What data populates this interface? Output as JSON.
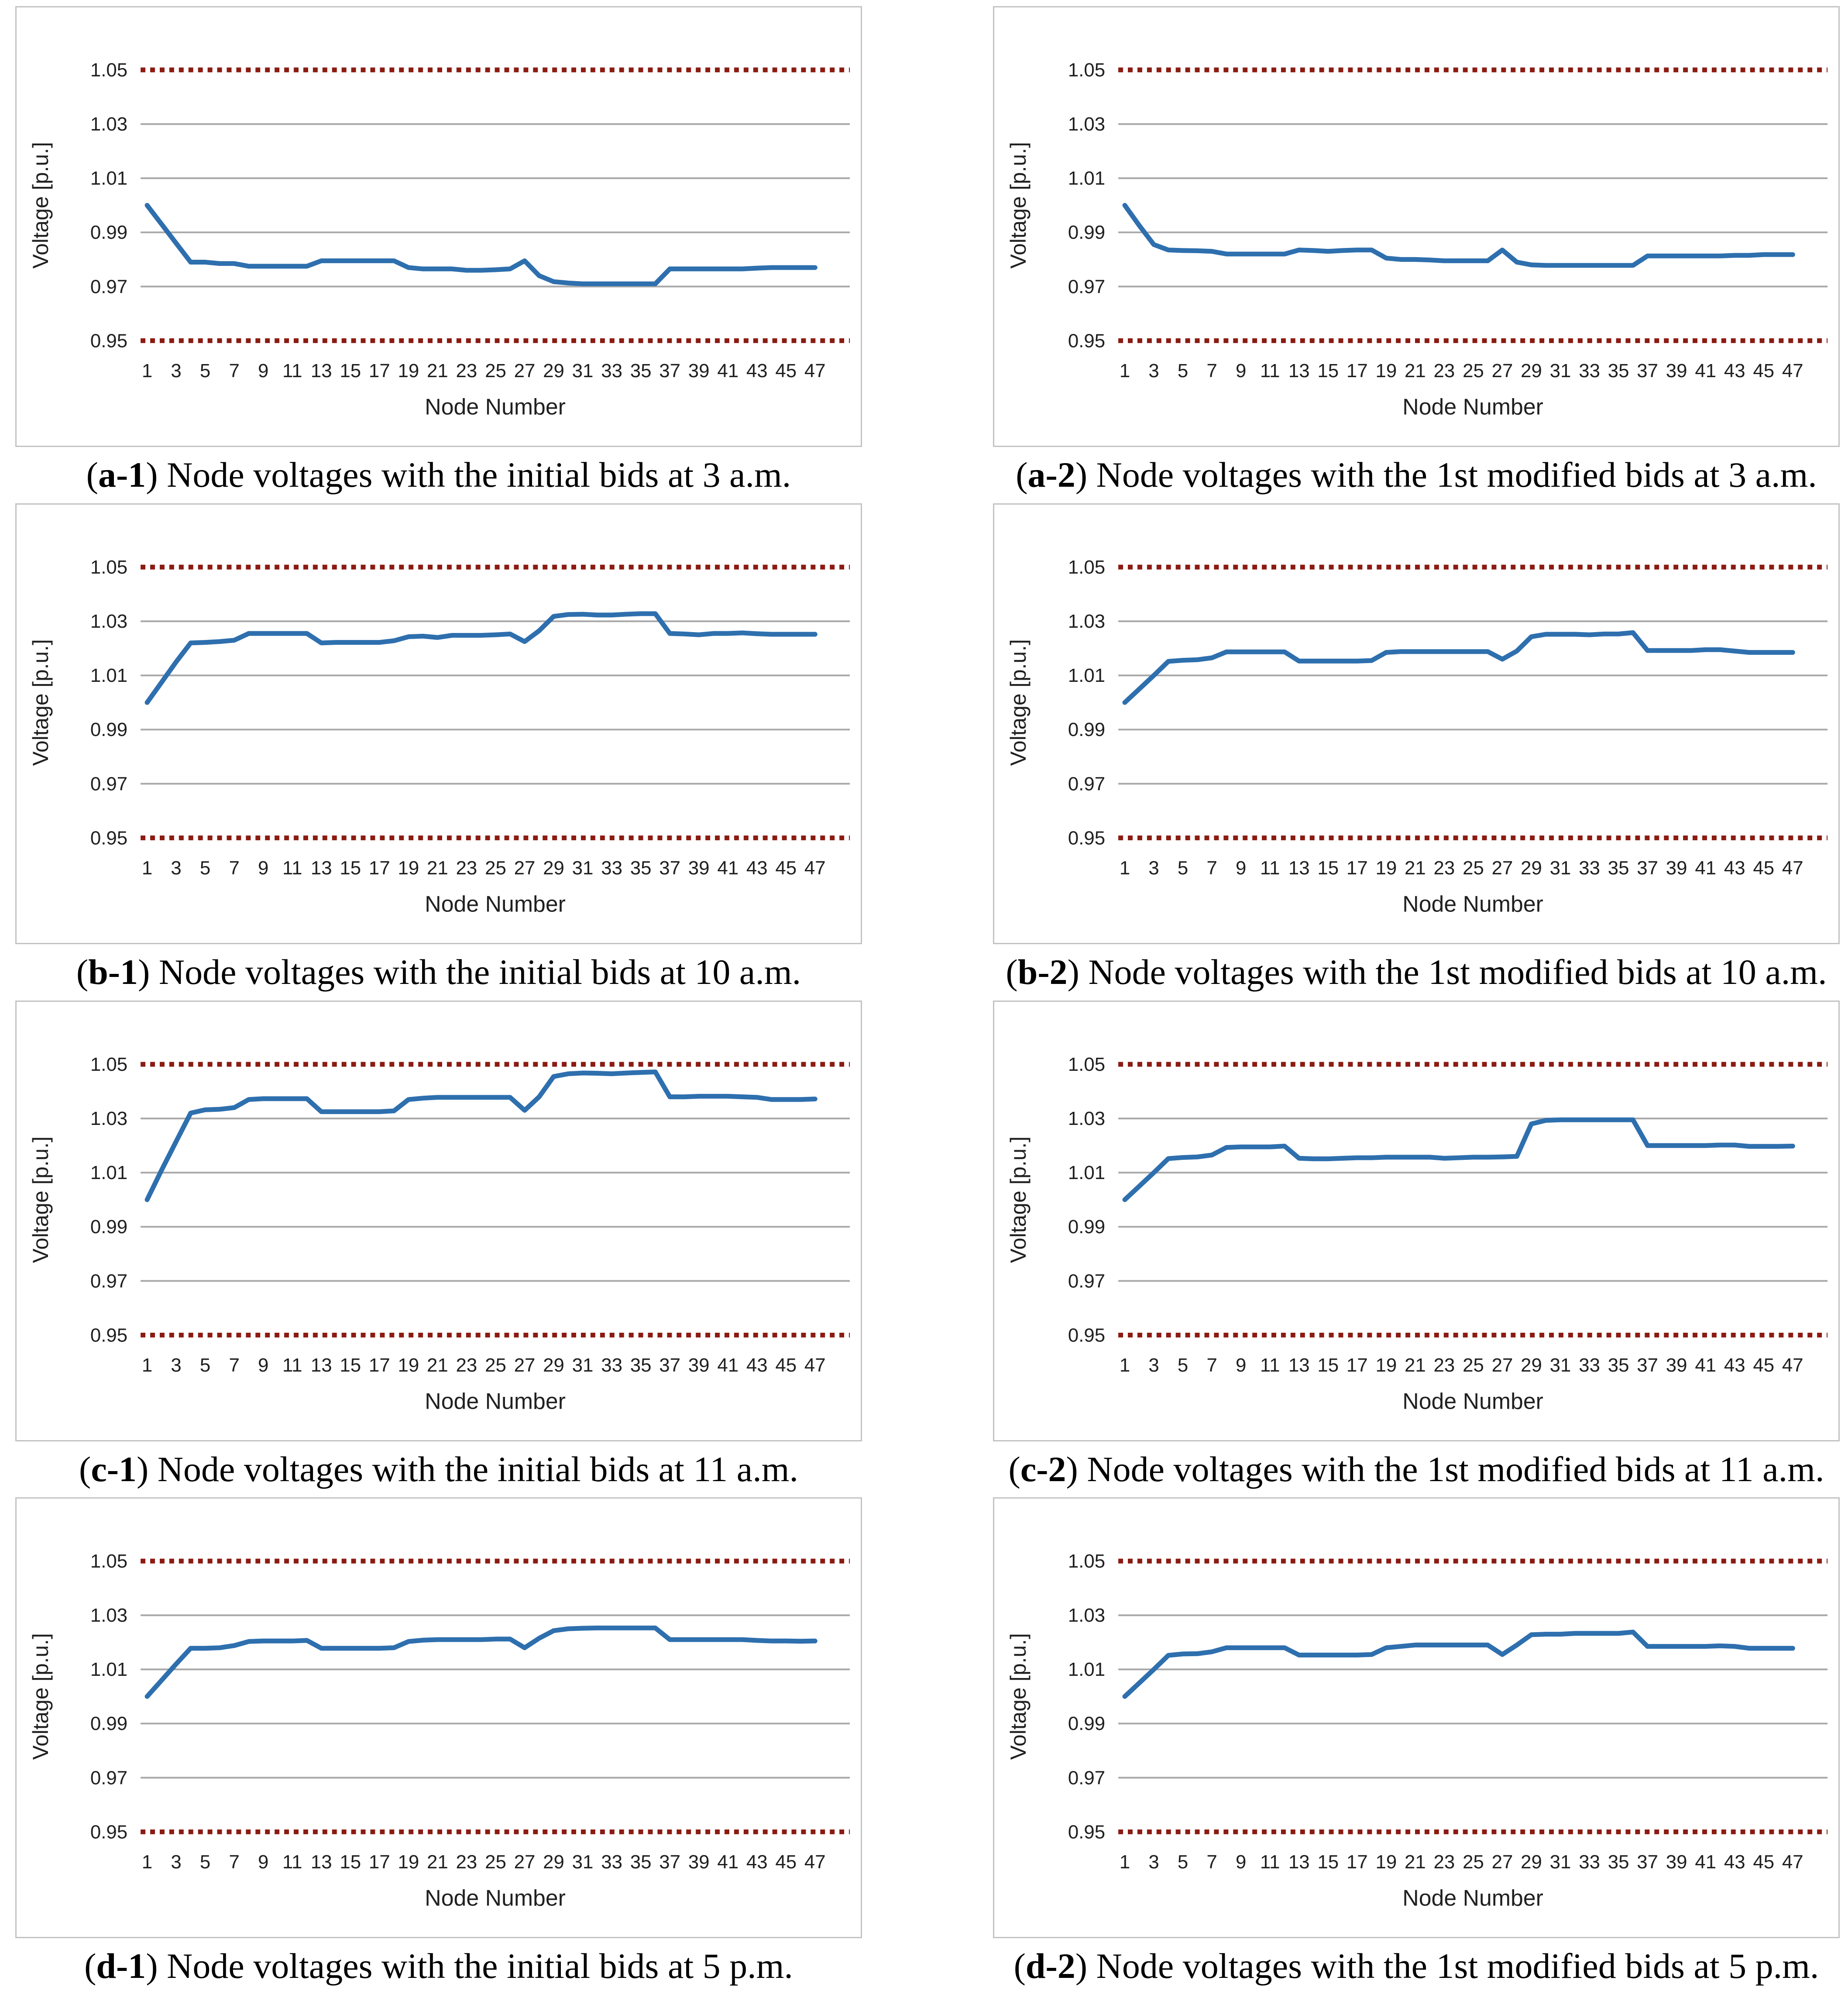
{
  "colors": {
    "series_line": "#2E6FAE",
    "limit_line": "#8B1B12",
    "gridline": "#A8A8A8",
    "text": "#202020",
    "panel_border": "#c3c3c3",
    "background": "#ffffff"
  },
  "axis": {
    "x_title": "Node Number",
    "y_title": "Voltage [p.u.]",
    "y_ticks": [
      "1.05",
      "1.03",
      "1.01",
      "0.99",
      "0.97",
      "0.95"
    ],
    "y_tick_values": [
      1.05,
      1.03,
      1.01,
      0.99,
      0.97,
      0.95
    ],
    "solid_gridlines": [
      1.03,
      1.01,
      0.99,
      0.97
    ],
    "x_tick_labels": [
      "1",
      "3",
      "5",
      "7",
      "9",
      "11",
      "13",
      "15",
      "17",
      "19",
      "21",
      "23",
      "25",
      "27",
      "29",
      "31",
      "33",
      "35",
      "37",
      "39",
      "41",
      "43",
      "45",
      "47"
    ],
    "x_range": [
      1,
      47
    ],
    "ylim": [
      0.945,
      1.055
    ],
    "grid": "horizontal-only",
    "legend": "none"
  },
  "chart_data": [
    {
      "id": "a-1",
      "type": "line",
      "caption_prefix": "(",
      "caption_label": "a-1",
      "caption_rest": ") Node voltages with the initial bids at 3 a.m.",
      "xlabel": "Node Number",
      "ylabel": "Voltage [p.u.]",
      "upper_limit": 1.05,
      "lower_limit": 0.95,
      "ylim": [
        0.945,
        1.055
      ],
      "x_nodes_from": 1,
      "x_nodes_to": 47,
      "values": [
        1.0,
        0.993,
        0.986,
        0.979,
        0.979,
        0.9785,
        0.9785,
        0.9775,
        0.9775,
        0.9775,
        0.9775,
        0.9775,
        0.9795,
        0.9795,
        0.9795,
        0.9795,
        0.9795,
        0.9795,
        0.977,
        0.9765,
        0.9765,
        0.9765,
        0.976,
        0.976,
        0.9762,
        0.9765,
        0.9795,
        0.974,
        0.9718,
        0.9713,
        0.971,
        0.971,
        0.971,
        0.971,
        0.971,
        0.971,
        0.9765,
        0.9765,
        0.9765,
        0.9765,
        0.9765,
        0.9765,
        0.9768,
        0.977,
        0.977,
        0.977,
        0.977
      ]
    },
    {
      "id": "a-2",
      "type": "line",
      "caption_prefix": "(",
      "caption_label": "a-2",
      "caption_rest": ") Node voltages with the 1st modified bids at 3 a.m.",
      "xlabel": "Node Number",
      "ylabel": "Voltage [p.u.]",
      "upper_limit": 1.05,
      "lower_limit": 0.95,
      "ylim": [
        0.945,
        1.055
      ],
      "x_nodes_from": 1,
      "x_nodes_to": 47,
      "values": [
        1.0,
        0.9925,
        0.9855,
        0.9835,
        0.9833,
        0.9832,
        0.983,
        0.982,
        0.982,
        0.982,
        0.982,
        0.982,
        0.9835,
        0.9833,
        0.983,
        0.9833,
        0.9835,
        0.9835,
        0.9805,
        0.98,
        0.98,
        0.9798,
        0.9795,
        0.9795,
        0.9795,
        0.9795,
        0.9835,
        0.979,
        0.978,
        0.9778,
        0.9778,
        0.9778,
        0.9778,
        0.9778,
        0.9778,
        0.9778,
        0.9813,
        0.9813,
        0.9813,
        0.9813,
        0.9813,
        0.9813,
        0.9815,
        0.9815,
        0.9818,
        0.9818,
        0.9818
      ]
    },
    {
      "id": "b-1",
      "type": "line",
      "caption_prefix": "(",
      "caption_label": "b-1",
      "caption_rest": ") Node voltages with the initial bids at 10 a.m.",
      "xlabel": "Node Number",
      "ylabel": "Voltage [p.u.]",
      "upper_limit": 1.05,
      "lower_limit": 0.95,
      "ylim": [
        0.945,
        1.055
      ],
      "x_nodes_from": 1,
      "x_nodes_to": 47,
      "values": [
        1.0,
        1.0075,
        1.015,
        1.022,
        1.0222,
        1.0225,
        1.023,
        1.0255,
        1.0255,
        1.0255,
        1.0255,
        1.0255,
        1.022,
        1.0222,
        1.0222,
        1.0222,
        1.0222,
        1.0228,
        1.0243,
        1.0245,
        1.024,
        1.0248,
        1.0248,
        1.0248,
        1.025,
        1.0253,
        1.0225,
        1.0265,
        1.0318,
        1.0325,
        1.0326,
        1.0323,
        1.0323,
        1.0326,
        1.0328,
        1.0328,
        1.0255,
        1.0253,
        1.025,
        1.0255,
        1.0255,
        1.0257,
        1.0254,
        1.0252,
        1.0252,
        1.0252,
        1.0252
      ]
    },
    {
      "id": "b-2",
      "type": "line",
      "caption_prefix": "(",
      "caption_label": "b-2",
      "caption_rest": ") Node voltages with the 1st modified bids at 10 a.m.",
      "xlabel": "Node Number",
      "ylabel": "Voltage [p.u.]",
      "upper_limit": 1.05,
      "lower_limit": 0.95,
      "ylim": [
        0.945,
        1.055
      ],
      "x_nodes_from": 1,
      "x_nodes_to": 47,
      "values": [
        1.0,
        1.005,
        1.01,
        1.0152,
        1.0156,
        1.0158,
        1.0165,
        1.0187,
        1.0187,
        1.0187,
        1.0187,
        1.0187,
        1.0153,
        1.0153,
        1.0153,
        1.0153,
        1.0153,
        1.0155,
        1.0185,
        1.0188,
        1.0188,
        1.0188,
        1.0188,
        1.0188,
        1.0188,
        1.0188,
        1.016,
        1.019,
        1.0243,
        1.0252,
        1.0252,
        1.0252,
        1.025,
        1.0253,
        1.0253,
        1.0258,
        1.0192,
        1.0192,
        1.0192,
        1.0192,
        1.0195,
        1.0195,
        1.019,
        1.0185,
        1.0185,
        1.0185,
        1.0185
      ]
    },
    {
      "id": "c-1",
      "type": "line",
      "caption_prefix": "(",
      "caption_label": "c-1",
      "caption_rest": ") Node voltages with the initial bids at 11 a.m.",
      "xlabel": "Node Number",
      "ylabel": "Voltage [p.u.]",
      "upper_limit": 1.05,
      "lower_limit": 0.95,
      "ylim": [
        0.945,
        1.055
      ],
      "x_nodes_from": 1,
      "x_nodes_to": 47,
      "values": [
        1.0,
        1.011,
        1.0215,
        1.032,
        1.0332,
        1.0334,
        1.034,
        1.037,
        1.0373,
        1.0373,
        1.0373,
        1.0373,
        1.0325,
        1.0325,
        1.0325,
        1.0325,
        1.0325,
        1.0328,
        1.037,
        1.0375,
        1.0378,
        1.0378,
        1.0378,
        1.0378,
        1.0378,
        1.0378,
        1.033,
        1.038,
        1.0455,
        1.0465,
        1.0468,
        1.0467,
        1.0465,
        1.0468,
        1.047,
        1.0472,
        1.038,
        1.038,
        1.0382,
        1.0382,
        1.0382,
        1.038,
        1.0378,
        1.037,
        1.037,
        1.037,
        1.0372
      ]
    },
    {
      "id": "c-2",
      "type": "line",
      "caption_prefix": "(",
      "caption_label": "c-2",
      "caption_rest": ") Node voltages with the 1st modified bids at 11 a.m.",
      "xlabel": "Node Number",
      "ylabel": "Voltage [p.u.]",
      "upper_limit": 1.05,
      "lower_limit": 0.95,
      "ylim": [
        0.945,
        1.055
      ],
      "x_nodes_from": 1,
      "x_nodes_to": 47,
      "values": [
        1.0,
        1.005,
        1.01,
        1.0152,
        1.0156,
        1.0158,
        1.0165,
        1.0193,
        1.0195,
        1.0195,
        1.0195,
        1.0198,
        1.0153,
        1.0151,
        1.0151,
        1.0153,
        1.0155,
        1.0155,
        1.0157,
        1.0157,
        1.0157,
        1.0157,
        1.0153,
        1.0155,
        1.0157,
        1.0157,
        1.0158,
        1.016,
        1.028,
        1.0293,
        1.0295,
        1.0295,
        1.0295,
        1.0295,
        1.0295,
        1.0295,
        1.02,
        1.02,
        1.02,
        1.02,
        1.02,
        1.0202,
        1.0202,
        1.0197,
        1.0197,
        1.0197,
        1.0198
      ]
    },
    {
      "id": "d-1",
      "type": "line",
      "caption_prefix": "(",
      "caption_label": "d-1",
      "caption_rest": ") Node voltages with the initial bids at 5 p.m.",
      "xlabel": "Node Number",
      "ylabel": "Voltage [p.u.]",
      "upper_limit": 1.05,
      "lower_limit": 0.95,
      "ylim": [
        0.945,
        1.055
      ],
      "x_nodes_from": 1,
      "x_nodes_to": 47,
      "values": [
        1.0,
        1.006,
        1.012,
        1.0178,
        1.0178,
        1.018,
        1.0188,
        1.0203,
        1.0205,
        1.0205,
        1.0205,
        1.0207,
        1.0178,
        1.0178,
        1.0178,
        1.0178,
        1.0178,
        1.018,
        1.0203,
        1.0208,
        1.021,
        1.021,
        1.021,
        1.021,
        1.0212,
        1.0212,
        1.018,
        1.0215,
        1.0243,
        1.025,
        1.0252,
        1.0253,
        1.0253,
        1.0253,
        1.0253,
        1.0253,
        1.021,
        1.021,
        1.021,
        1.021,
        1.021,
        1.021,
        1.0207,
        1.0205,
        1.0205,
        1.0204,
        1.0205
      ]
    },
    {
      "id": "d-2",
      "type": "line",
      "caption_prefix": "(",
      "caption_label": "d-2",
      "caption_rest": ") Node voltages with the 1st modified bids at 5 p.m.",
      "xlabel": "Node Number",
      "ylabel": "Voltage [p.u.]",
      "upper_limit": 1.05,
      "lower_limit": 0.95,
      "ylim": [
        0.945,
        1.055
      ],
      "x_nodes_from": 1,
      "x_nodes_to": 47,
      "values": [
        1.0,
        1.005,
        1.01,
        1.0152,
        1.0157,
        1.0158,
        1.0165,
        1.018,
        1.018,
        1.018,
        1.018,
        1.018,
        1.0153,
        1.0153,
        1.0153,
        1.0153,
        1.0153,
        1.0155,
        1.018,
        1.0185,
        1.019,
        1.019,
        1.019,
        1.019,
        1.019,
        1.019,
        1.0155,
        1.019,
        1.0228,
        1.023,
        1.023,
        1.0233,
        1.0233,
        1.0233,
        1.0233,
        1.0238,
        1.0185,
        1.0185,
        1.0185,
        1.0185,
        1.0185,
        1.0187,
        1.0185,
        1.0178,
        1.0178,
        1.0178,
        1.0178
      ]
    }
  ]
}
